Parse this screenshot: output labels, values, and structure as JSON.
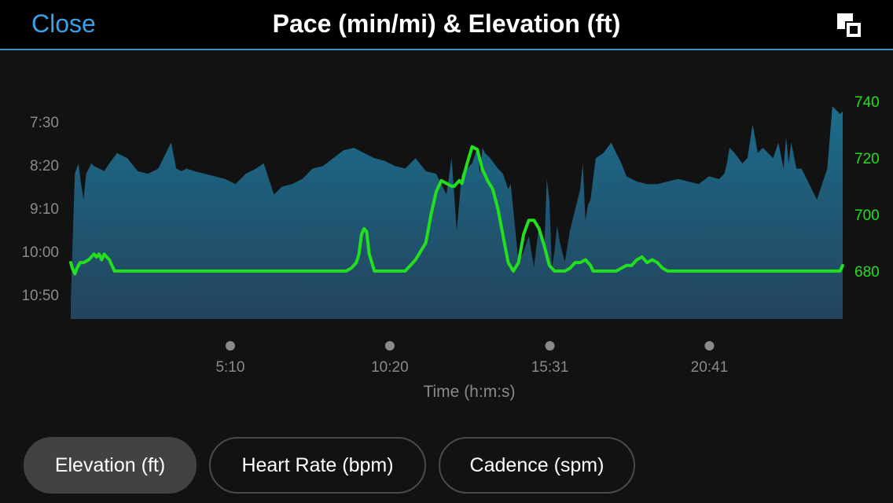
{
  "header": {
    "close_label": "Close",
    "title": "Pace (min/mi) & Elevation (ft)",
    "expand_icon": "expand-icon"
  },
  "colors": {
    "accent": "#3ba0e4",
    "elevation_line": "#22e01d",
    "pace_fill_top": "#1b6d8c",
    "pace_fill_bottom": "#24435c",
    "background": "#121212",
    "header_bg": "#000000"
  },
  "chart_data": {
    "type": "area",
    "xlabel": "Time (h:m:s)",
    "x_ticks": [
      "5:10",
      "10:20",
      "15:31",
      "20:41"
    ],
    "x_tick_seconds": [
      310,
      620,
      931,
      1241
    ],
    "xlim": [
      0,
      1500
    ],
    "left_axis": {
      "ticks": [
        "7:30",
        "8:20",
        "9:10",
        "10:00",
        "10:50"
      ],
      "tick_minutes": [
        7.5,
        8.333,
        9.167,
        10.0,
        10.833
      ],
      "lim_minutes": [
        7.0,
        11.3
      ],
      "inverted": true
    },
    "right_axis": {
      "ticks": [
        "740",
        "720",
        "700",
        "680"
      ],
      "tick_values": [
        740,
        720,
        700,
        680
      ],
      "lim": [
        663,
        742
      ]
    },
    "series": [
      {
        "kind": "area",
        "axis": "left",
        "x": [
          0,
          3,
          8,
          15,
          20,
          25,
          30,
          40,
          45,
          55,
          65,
          75,
          90,
          100,
          110,
          130,
          150,
          170,
          185,
          195,
          205,
          215,
          225,
          240,
          260,
          280,
          300,
          320,
          340,
          360,
          375,
          385,
          395,
          410,
          430,
          450,
          470,
          490,
          510,
          530,
          550,
          570,
          590,
          610,
          630,
          650,
          670,
          690,
          710,
          720,
          730,
          740,
          750,
          760,
          770,
          780,
          790,
          795,
          800,
          805,
          815,
          830,
          840,
          850,
          855,
          860,
          870,
          880,
          890,
          900,
          910,
          920,
          925,
          930,
          935,
          940,
          945,
          950,
          960,
          970,
          985,
          990,
          995,
          1000,
          1005,
          1010,
          1020,
          1035,
          1050,
          1060,
          1070,
          1080,
          1100,
          1120,
          1140,
          1160,
          1180,
          1200,
          1220,
          1240,
          1260,
          1270,
          1275,
          1280,
          1290,
          1305,
          1315,
          1325,
          1335,
          1345,
          1355,
          1365,
          1375,
          1385,
          1390,
          1395,
          1400,
          1410,
          1420,
          1430,
          1440,
          1450,
          1460,
          1470,
          1480,
          1490,
          1495,
          1500
        ],
        "y_minutes": [
          11.0,
          10.0,
          8.5,
          8.3,
          8.7,
          9.0,
          8.5,
          8.3,
          8.35,
          8.4,
          8.45,
          8.3,
          8.1,
          8.15,
          8.2,
          8.45,
          8.5,
          8.4,
          8.1,
          7.9,
          8.4,
          8.45,
          8.4,
          8.45,
          8.5,
          8.55,
          8.6,
          8.7,
          8.5,
          8.4,
          8.3,
          8.6,
          8.9,
          8.75,
          8.7,
          8.6,
          8.4,
          8.35,
          8.2,
          8.05,
          8.0,
          8.1,
          8.2,
          8.25,
          8.35,
          8.4,
          8.2,
          8.45,
          8.5,
          8.7,
          8.9,
          8.2,
          9.6,
          8.5,
          8.4,
          8.3,
          8.0,
          8.5,
          8.0,
          8.1,
          8.2,
          8.4,
          8.5,
          8.8,
          8.7,
          9.2,
          10.2,
          10.0,
          9.7,
          10.3,
          9.5,
          10.0,
          8.6,
          9.0,
          10.3,
          10.0,
          9.5,
          9.8,
          10.2,
          9.6,
          9.0,
          8.8,
          8.3,
          9.4,
          9.1,
          9.0,
          8.2,
          8.1,
          7.9,
          8.1,
          8.3,
          8.55,
          8.65,
          8.7,
          8.7,
          8.65,
          8.6,
          8.65,
          8.7,
          8.55,
          8.6,
          8.5,
          8.3,
          8.0,
          8.1,
          8.3,
          8.2,
          7.55,
          8.1,
          8.0,
          8.1,
          8.2,
          7.9,
          8.4,
          7.8,
          8.3,
          7.9,
          8.4,
          8.4,
          8.6,
          8.8,
          9.0,
          8.7,
          8.4,
          7.2,
          7.3,
          7.35,
          7.3
        ]
      },
      {
        "kind": "line",
        "axis": "right",
        "x": [
          0,
          3,
          8,
          12,
          18,
          25,
          35,
          45,
          50,
          55,
          60,
          65,
          70,
          75,
          80,
          85,
          90,
          95,
          100,
          500,
          520,
          525,
          530,
          535,
          545,
          550,
          555,
          560,
          565,
          570,
          575,
          580,
          590,
          600,
          610,
          620,
          640,
          650,
          660,
          670,
          680,
          690,
          700,
          710,
          720,
          730,
          740,
          745,
          750,
          755,
          760,
          770,
          780,
          790,
          800,
          810,
          820,
          830,
          850,
          860,
          870,
          880,
          890,
          900,
          910,
          920,
          930,
          935,
          940,
          945,
          950,
          960,
          970,
          980,
          990,
          1000,
          1010,
          1015,
          1020,
          1030,
          1040,
          1050,
          1060,
          1070,
          1080,
          1090,
          1100,
          1110,
          1120,
          1130,
          1140,
          1150,
          1160,
          1170,
          1180,
          1200,
          1400,
          1495,
          1500
        ],
        "y": [
          683,
          681,
          679,
          681,
          683,
          683,
          684,
          686,
          685,
          686,
          684,
          686,
          685,
          684,
          682,
          680,
          680,
          680,
          680,
          680,
          680,
          680,
          680,
          680,
          681,
          682,
          683,
          686,
          693,
          695,
          694,
          686,
          680,
          680,
          680,
          680,
          680,
          680,
          682,
          684,
          687,
          690,
          700,
          708,
          712,
          711,
          710,
          710,
          711,
          712,
          711,
          718,
          724,
          723,
          716,
          712,
          709,
          702,
          683,
          680,
          683,
          693,
          698,
          698,
          695,
          689,
          682,
          681,
          680,
          680,
          680,
          680,
          681,
          683,
          683,
          684,
          682,
          680,
          680,
          680,
          680,
          680,
          680,
          681,
          682,
          682,
          684,
          685,
          683,
          684,
          683,
          681,
          680,
          680,
          680,
          680,
          680,
          680,
          682
        ]
      }
    ]
  },
  "tabs": [
    {
      "label": "Elevation (ft)",
      "active": true
    },
    {
      "label": "Heart Rate (bpm)",
      "active": false
    },
    {
      "label": "Cadence (spm)",
      "active": false
    }
  ]
}
